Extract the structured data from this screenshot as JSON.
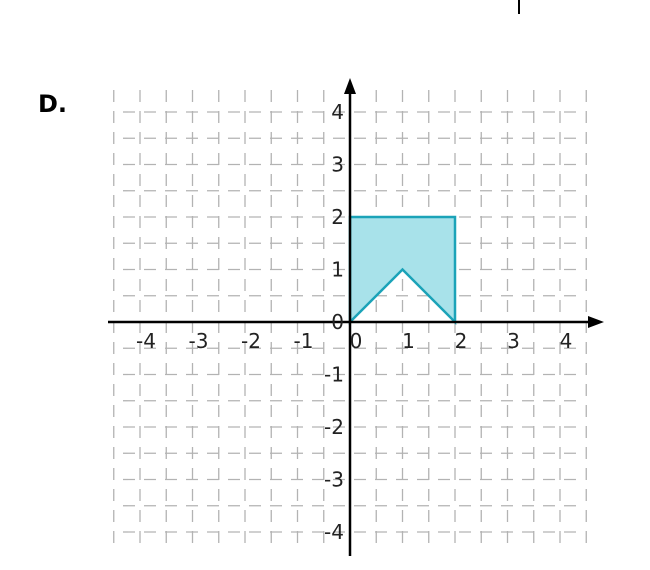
{
  "option_label": "D.",
  "colors": {
    "grid": "#b3b3b3",
    "axis": "#000000",
    "shape_fill": "#a8e2ea",
    "shape_stroke": "#1ba3b8"
  },
  "plot": {
    "x_range": [
      -4,
      4
    ],
    "y_range": [
      -4,
      4
    ],
    "grid": true,
    "x_tick_labels": [
      {
        "value": -4,
        "text": "-4"
      },
      {
        "value": -3,
        "text": "-3"
      },
      {
        "value": -2,
        "text": "-2"
      },
      {
        "value": -1,
        "text": "-1"
      },
      {
        "value": 0,
        "text": "0"
      },
      {
        "value": 1,
        "text": "1"
      },
      {
        "value": 2,
        "text": "2"
      },
      {
        "value": 3,
        "text": "3"
      },
      {
        "value": 4,
        "text": "4"
      }
    ],
    "y_tick_labels": [
      {
        "value": 4,
        "text": "4"
      },
      {
        "value": 3,
        "text": "3"
      },
      {
        "value": 2,
        "text": "2"
      },
      {
        "value": 1,
        "text": "1"
      },
      {
        "value": 0,
        "text": "0"
      },
      {
        "value": -1,
        "text": "-1"
      },
      {
        "value": -2,
        "text": "-2"
      },
      {
        "value": -3,
        "text": "-3"
      },
      {
        "value": -4,
        "text": "-4"
      }
    ],
    "shape": {
      "vertices": [
        [
          0,
          0
        ],
        [
          0,
          2
        ],
        [
          2,
          2
        ],
        [
          2,
          0
        ],
        [
          1,
          1
        ]
      ]
    }
  }
}
